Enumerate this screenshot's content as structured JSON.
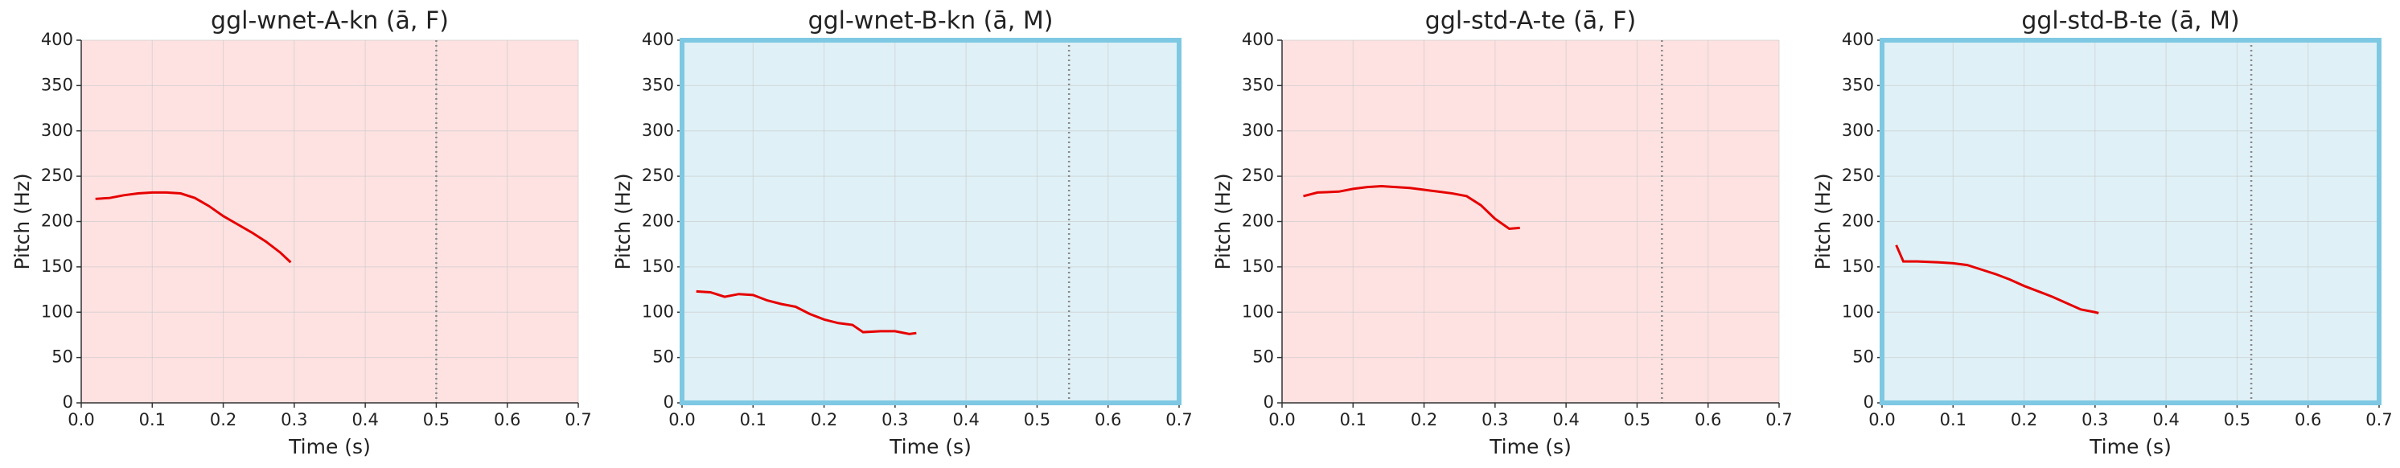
{
  "chart_data": [
    {
      "type": "line",
      "title": "ggl-wnet-A-kn (ā, F)",
      "x_label": "Time (s)",
      "y_label": "Pitch (Hz)",
      "x": [
        0.02,
        0.04,
        0.06,
        0.08,
        0.1,
        0.12,
        0.14,
        0.16,
        0.18,
        0.2,
        0.22,
        0.24,
        0.26,
        0.28,
        0.295
      ],
      "values": [
        225,
        226,
        229,
        231,
        232,
        232,
        231,
        226,
        217,
        206,
        197,
        188,
        178,
        166,
        155
      ],
      "color": "#e60000",
      "vline": 0.5,
      "background": "#fde2e1",
      "xlim": [
        0,
        0.7
      ],
      "xticks": [
        {
          "value": 0,
          "label": "0.0"
        },
        0.1,
        0.2,
        0.3,
        0.4,
        0.5,
        0.6,
        0.7
      ],
      "ylim": [
        0,
        400
      ],
      "yticks": [
        0,
        50,
        100,
        150,
        200,
        250,
        300,
        350,
        400
      ],
      "grid": true
    },
    {
      "type": "line",
      "title": "ggl-wnet-B-kn (ā, M)",
      "x_label": "Time (s)",
      "y_label": "Pitch (Hz)",
      "x": [
        0.02,
        0.04,
        0.06,
        0.08,
        0.1,
        0.12,
        0.14,
        0.16,
        0.18,
        0.2,
        0.22,
        0.24,
        0.255,
        0.28,
        0.3,
        0.32,
        0.33
      ],
      "values": [
        123,
        122,
        117,
        120,
        119,
        113,
        109,
        106,
        98,
        92,
        88,
        86,
        78,
        79,
        79,
        76,
        77
      ],
      "color": "#e60000",
      "vline": 0.545,
      "background": "#dff0f6",
      "border": "#7ec8e3",
      "xlim": [
        0,
        0.7
      ],
      "xticks": [
        {
          "value": 0,
          "label": "0.0"
        },
        0.1,
        0.2,
        0.3,
        0.4,
        0.5,
        0.6,
        0.7
      ],
      "ylim": [
        0,
        400
      ],
      "yticks": [
        0,
        50,
        100,
        150,
        200,
        250,
        300,
        350,
        400
      ],
      "grid": true
    },
    {
      "type": "line",
      "title": "ggl-std-A-te (ā, F)",
      "x_label": "Time (s)",
      "y_label": "Pitch (Hz)",
      "x": [
        0.03,
        0.05,
        0.08,
        0.1,
        0.12,
        0.14,
        0.16,
        0.18,
        0.2,
        0.22,
        0.24,
        0.26,
        0.28,
        0.3,
        0.32,
        0.335
      ],
      "values": [
        228,
        232,
        233,
        236,
        238,
        239,
        238,
        237,
        235,
        233,
        231,
        228,
        218,
        203,
        192,
        193
      ],
      "color": "#e60000",
      "vline": 0.535,
      "background": "#fde2e1",
      "xlim": [
        0,
        0.7
      ],
      "xticks": [
        {
          "value": 0,
          "label": "0.0"
        },
        0.1,
        0.2,
        0.3,
        0.4,
        0.5,
        0.6,
        0.7
      ],
      "ylim": [
        0,
        400
      ],
      "yticks": [
        0,
        50,
        100,
        150,
        200,
        250,
        300,
        350,
        400
      ],
      "grid": true
    },
    {
      "type": "line",
      "title": "ggl-std-B-te (ā, M)",
      "x_label": "Time (s)",
      "y_label": "Pitch (Hz)",
      "x": [
        0.02,
        0.03,
        0.05,
        0.08,
        0.1,
        0.12,
        0.14,
        0.16,
        0.18,
        0.2,
        0.22,
        0.24,
        0.26,
        0.28,
        0.3,
        0.305
      ],
      "values": [
        174,
        156,
        156,
        155,
        154,
        152,
        147,
        142,
        136,
        129,
        123,
        117,
        110,
        103,
        100,
        99
      ],
      "color": "#e60000",
      "vline": 0.52,
      "background": "#dff0f6",
      "border": "#7ec8e3",
      "xlim": [
        0,
        0.7
      ],
      "xticks": [
        {
          "value": 0,
          "label": "0.0"
        },
        0.1,
        0.2,
        0.3,
        0.4,
        0.5,
        0.6,
        0.7
      ],
      "ylim": [
        0,
        400
      ],
      "yticks": [
        0,
        50,
        100,
        150,
        200,
        250,
        300,
        350,
        400
      ],
      "grid": true
    }
  ]
}
